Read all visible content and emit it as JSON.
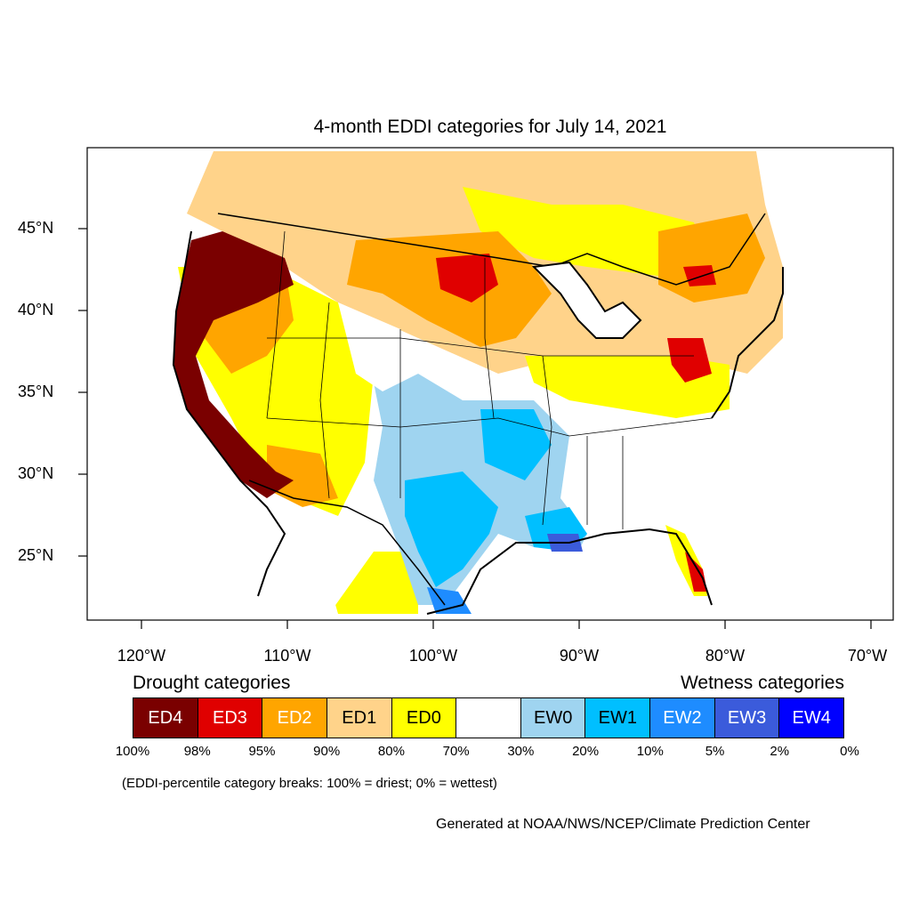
{
  "title": "4-month EDDI categories for July 14, 2021",
  "lat_labels": [
    "45°N",
    "40°N",
    "35°N",
    "30°N",
    "25°N"
  ],
  "lon_labels": [
    "120°W",
    "110°W",
    "100°W",
    "90°W",
    "80°W",
    "70°W"
  ],
  "drought_label": "Drought categories",
  "wetness_label": "Wetness categories",
  "categories": [
    {
      "label": "ED4",
      "color": "#7a0000",
      "text_color": "#ffffff"
    },
    {
      "label": "ED3",
      "color": "#e00000",
      "text_color": "#ffffff"
    },
    {
      "label": "ED2",
      "color": "#ffa500",
      "text_color": "#ffffff"
    },
    {
      "label": "ED1",
      "color": "#ffd38a",
      "text_color": "#000000"
    },
    {
      "label": "ED0",
      "color": "#ffff00",
      "text_color": "#000000"
    },
    {
      "label": "",
      "color": "#ffffff",
      "text_color": "#000000"
    },
    {
      "label": "EW0",
      "color": "#9fd4f0",
      "text_color": "#000000"
    },
    {
      "label": "EW1",
      "color": "#00bfff",
      "text_color": "#000000"
    },
    {
      "label": "EW2",
      "color": "#1e8cff",
      "text_color": "#ffffff"
    },
    {
      "label": "EW3",
      "color": "#3b5bdb",
      "text_color": "#ffffff"
    },
    {
      "label": "EW4",
      "color": "#0000ff",
      "text_color": "#ffffff"
    }
  ],
  "percent_breaks": [
    "100%",
    "98%",
    "95%",
    "90%",
    "80%",
    "70%",
    "30%",
    "20%",
    "10%",
    "5%",
    "2%",
    "0%"
  ],
  "note": "(EDDI-percentile category breaks: 100% = driest; 0% = wettest)",
  "credit": "Generated at NOAA/NWS/NCEP/Climate Prediction Center"
}
